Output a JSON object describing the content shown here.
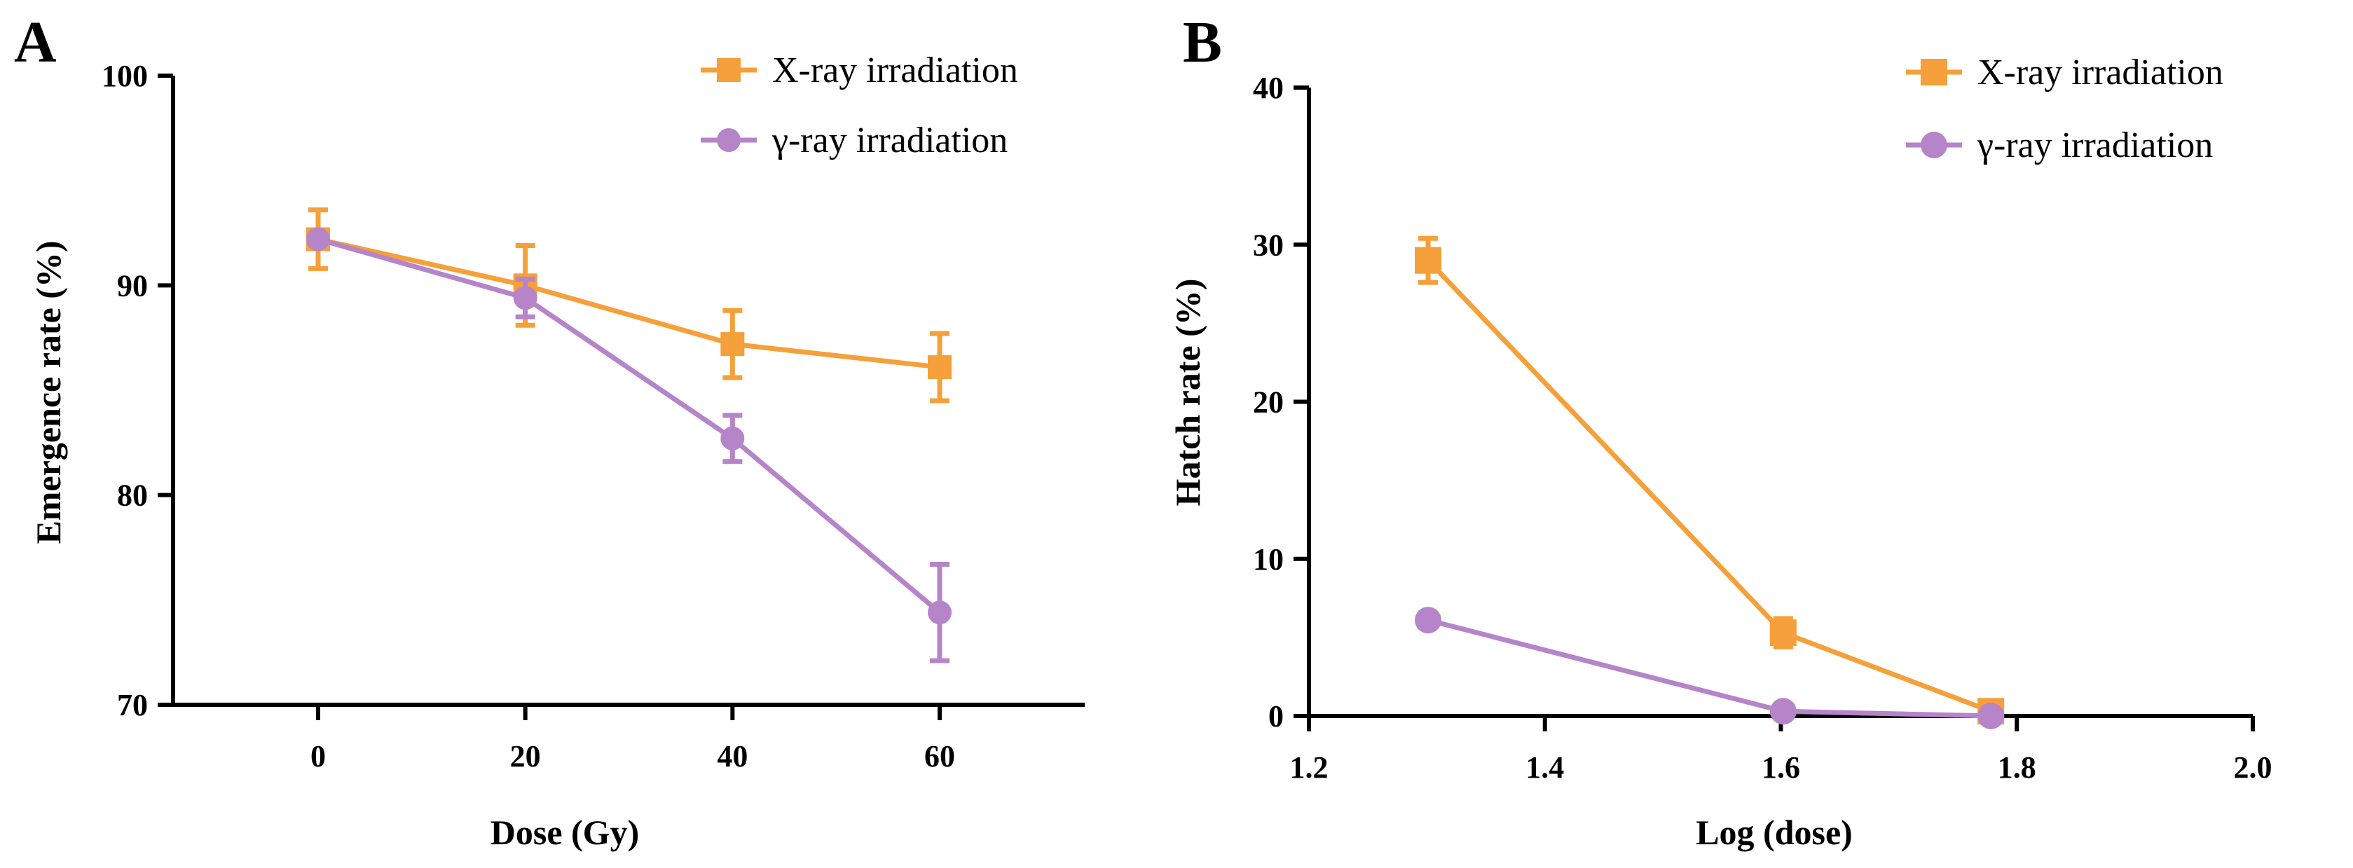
{
  "colors": {
    "xray": "#F5A03A",
    "gamma": "#B584C9"
  },
  "chart_data": [
    {
      "panel": "A",
      "type": "line",
      "title": "",
      "xlabel": "Dose (Gy)",
      "ylabel": "Emergence rate (%)",
      "xlim": [
        -14,
        74
      ],
      "ylim": [
        70,
        100
      ],
      "xticks": [
        0,
        20,
        40,
        60
      ],
      "yticks": [
        70,
        80,
        90,
        100
      ],
      "legend_position": "top-right",
      "series": [
        {
          "name": "X-ray irradiation",
          "marker": "square",
          "color_key": "xray",
          "x": [
            0,
            20,
            40,
            60
          ],
          "y": [
            92.2,
            90.0,
            87.2,
            86.1
          ],
          "err": [
            1.4,
            1.9,
            1.6,
            1.6
          ]
        },
        {
          "name": "γ-ray irradiation",
          "marker": "circle",
          "color_key": "gamma",
          "x": [
            0,
            20,
            40,
            60
          ],
          "y": [
            92.2,
            89.4,
            82.7,
            74.4
          ],
          "err": [
            0,
            0.9,
            1.1,
            2.3
          ]
        }
      ]
    },
    {
      "panel": "B",
      "type": "line",
      "title": "",
      "xlabel": "Log (dose)",
      "ylabel": "Hatch rate (%)",
      "xlim": [
        1.2,
        2.0
      ],
      "ylim": [
        0,
        40
      ],
      "xticks": [
        1.2,
        1.4,
        1.6,
        1.8,
        2.0
      ],
      "yticks": [
        0,
        10,
        20,
        30,
        40
      ],
      "legend_position": "top-right",
      "series": [
        {
          "name": "X-ray irradiation",
          "marker": "square",
          "color_key": "xray",
          "x": [
            1.301,
            1.602,
            1.778
          ],
          "y": [
            29.0,
            5.3,
            0.3
          ],
          "err": [
            1.4,
            0.9,
            0
          ]
        },
        {
          "name": "γ-ray irradiation",
          "marker": "circle",
          "color_key": "gamma",
          "x": [
            1.301,
            1.602,
            1.778
          ],
          "y": [
            6.1,
            0.3,
            0.0
          ],
          "err": [
            0,
            0,
            0
          ]
        }
      ]
    }
  ]
}
